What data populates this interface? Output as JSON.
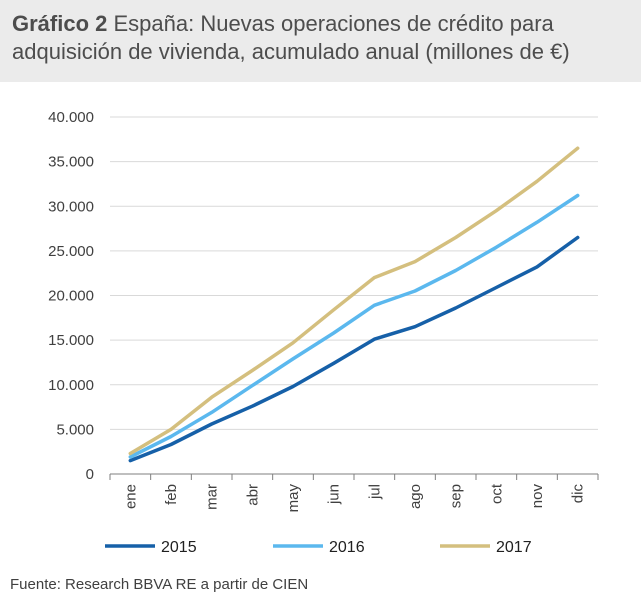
{
  "header": {
    "title_bold": "Gráfico 2",
    "title_rest": " España: Nuevas operaciones de crédito para adquisición de vivienda, acumulado anual (millones de €)"
  },
  "source": "Fuente: Research BBVA RE a partir de CIEN",
  "colors": {
    "s2015": "#1660a8",
    "s2016": "#5bb8ee",
    "s2017": "#d4bf7e"
  },
  "chart_data": {
    "type": "line",
    "title": "Gráfico 2 España: Nuevas operaciones de crédito para adquisición de vivienda, acumulado anual (millones de €)",
    "categories": [
      "ene",
      "feb",
      "mar",
      "abr",
      "may",
      "jun",
      "jul",
      "ago",
      "sep",
      "oct",
      "nov",
      "dic"
    ],
    "ylim": [
      0,
      40000
    ],
    "yticks": [
      0,
      5000,
      10000,
      15000,
      20000,
      25000,
      30000,
      35000,
      40000
    ],
    "ytick_labels": [
      "0",
      "5.000",
      "10.000",
      "15.000",
      "20.000",
      "25.000",
      "30.000",
      "35.000",
      "40.000"
    ],
    "grid": true,
    "legend": "bottom",
    "series": [
      {
        "name": "2015",
        "color": "#1660a8",
        "values": [
          1500,
          3300,
          5600,
          7600,
          9800,
          12400,
          15100,
          16500,
          18600,
          20900,
          23200,
          26500
        ]
      },
      {
        "name": "2016",
        "color": "#5bb8ee",
        "values": [
          1900,
          4200,
          6900,
          9900,
          12900,
          15800,
          18900,
          20500,
          22800,
          25400,
          28200,
          31200
        ]
      },
      {
        "name": "2017",
        "color": "#d4bf7e",
        "values": [
          2300,
          5000,
          8600,
          11600,
          14700,
          18400,
          22000,
          23800,
          26500,
          29500,
          32800,
          36500
        ]
      }
    ]
  }
}
